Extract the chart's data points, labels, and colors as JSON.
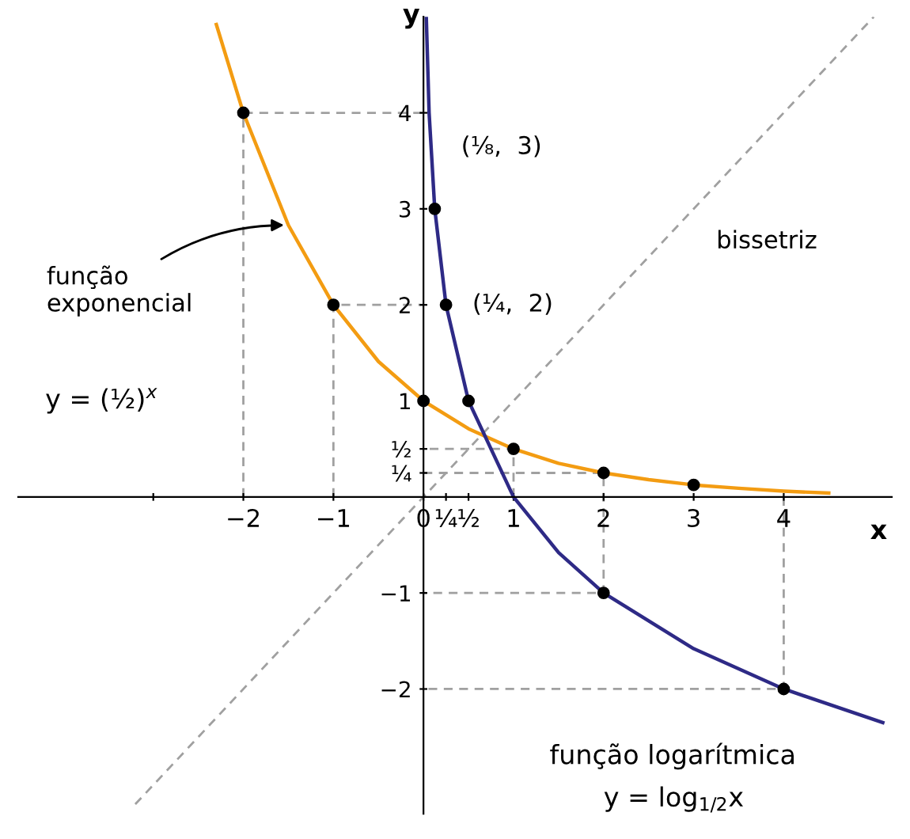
{
  "chart_data": {
    "type": "line",
    "xlabel": "x",
    "ylabel": "y",
    "xlim": [
      -4.5,
      5.2
    ],
    "ylim": [
      -3.3,
      5.0
    ],
    "xticks": [
      {
        "value": -3,
        "label": null
      },
      {
        "value": -2,
        "label": "−2"
      },
      {
        "value": -1,
        "label": "−1"
      },
      {
        "value": 0,
        "label": "0"
      },
      {
        "value": 0.25,
        "label": "¼"
      },
      {
        "value": 0.5,
        "label": "½"
      },
      1,
      2,
      3,
      4
    ],
    "yticks": [
      {
        "value": -2,
        "label": "−2"
      },
      {
        "value": -1,
        "label": "−1"
      },
      {
        "value": 0.25,
        "label": "¼"
      },
      {
        "value": 0.5,
        "label": "½"
      },
      1,
      2,
      3,
      4
    ],
    "grid": false,
    "series": [
      {
        "color": "#f39c12",
        "x": [
          -2.3,
          -2,
          -1.5,
          -1,
          -0.5,
          0,
          0.5,
          1,
          1.5,
          2,
          2.5,
          3,
          3.5,
          4,
          4.5
        ],
        "values": [
          4.92,
          4,
          2.83,
          2,
          1.41,
          1,
          0.71,
          0.5,
          0.35,
          0.25,
          0.18,
          0.125,
          0.09,
          0.06,
          0.04
        ]
      },
      {
        "color": "#2e2a86",
        "x": [
          0.031,
          0.0625,
          0.125,
          0.25,
          0.5,
          1,
          1.5,
          2,
          3,
          4,
          5.1
        ],
        "values": [
          5,
          4,
          3,
          2,
          1,
          0,
          -0.58,
          -1,
          -1.58,
          -2,
          -2.35
        ]
      },
      {
        "color": "#a0a0a0",
        "line_style": "dashed",
        "x": [
          -3.2,
          5
        ],
        "values": [
          -3.2,
          5
        ]
      },
      {
        "color": "#a0a0a0",
        "line_style": "dashed",
        "x": [
          -2,
          -2,
          0
        ],
        "values": [
          0,
          4,
          4
        ]
      },
      {
        "color": "#a0a0a0",
        "line_style": "dashed",
        "x": [
          -1,
          -1,
          0
        ],
        "values": [
          0,
          2,
          2
        ]
      },
      {
        "color": "#a0a0a0",
        "line_style": "dashed",
        "x": [
          1,
          1,
          0
        ],
        "values": [
          0,
          0.5,
          0.5
        ]
      },
      {
        "color": "#a0a0a0",
        "line_style": "dashed",
        "x": [
          0,
          2,
          2,
          0
        ],
        "values": [
          0.25,
          0.25,
          -1,
          -1
        ]
      },
      {
        "color": "#a0a0a0",
        "line_style": "dashed",
        "x": [
          4,
          4,
          0
        ],
        "values": [
          0,
          -2,
          -2
        ]
      },
      {
        "type": "scatter",
        "color": "#000000",
        "marker": "circle",
        "x": [
          -2,
          -1,
          0,
          1,
          2,
          3,
          0.125,
          0.25,
          0.5,
          2,
          4
        ],
        "values": [
          4,
          2,
          1,
          0.5,
          0.25,
          0.125,
          3,
          2,
          1,
          -1,
          -2
        ]
      }
    ],
    "annotations": [
      {
        "text": "bissetriz",
        "x": 3.3,
        "y": 3.3
      },
      {
        "text": "função\nexponencial",
        "x": -1.5,
        "y": 2.83
      },
      "y = (½)$^{x}$",
      {
        "text": "(⅛,  3)",
        "x": 0.125,
        "y": 3
      },
      {
        "text": "(¼,  2)",
        "x": 0.25,
        "y": 2
      },
      "função logarítmica",
      "y = log$_{1/2}$x"
    ]
  }
}
